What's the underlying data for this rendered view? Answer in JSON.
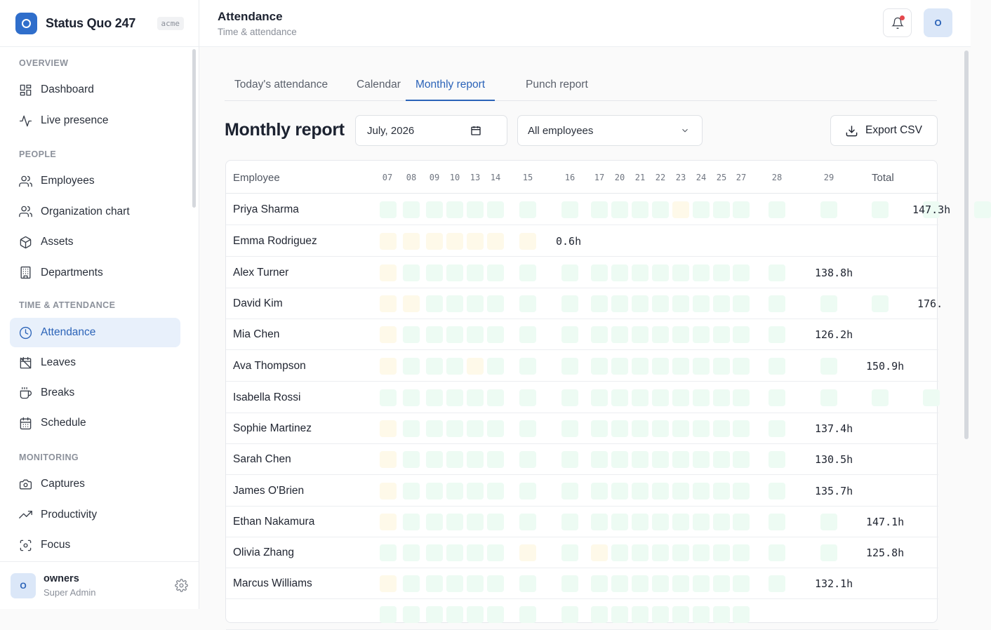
{
  "brand": {
    "name": "Status Quo 247",
    "tag": "acme"
  },
  "sidebar": {
    "sections": [
      {
        "label": "OVERVIEW",
        "items": [
          {
            "label": "Dashboard",
            "icon": "dashboard-icon"
          },
          {
            "label": "Live presence",
            "icon": "activity-icon"
          }
        ]
      },
      {
        "label": "PEOPLE",
        "items": [
          {
            "label": "Employees",
            "icon": "users-icon"
          },
          {
            "label": "Organization chart",
            "icon": "users-icon"
          },
          {
            "label": "Assets",
            "icon": "box-icon"
          },
          {
            "label": "Departments",
            "icon": "building-icon"
          }
        ]
      },
      {
        "label": "TIME & ATTENDANCE",
        "items": [
          {
            "label": "Attendance",
            "icon": "clock-icon",
            "active": true
          },
          {
            "label": "Leaves",
            "icon": "calendar-off-icon"
          },
          {
            "label": "Breaks",
            "icon": "coffee-icon"
          },
          {
            "label": "Schedule",
            "icon": "calendar-icon"
          }
        ]
      },
      {
        "label": "MONITORING",
        "items": [
          {
            "label": "Captures",
            "icon": "camera-icon"
          },
          {
            "label": "Productivity",
            "icon": "trending-up-icon"
          },
          {
            "label": "Focus",
            "icon": "focus-icon"
          }
        ]
      }
    ]
  },
  "user": {
    "initial": "O",
    "name": "owners",
    "role": "Super Admin"
  },
  "header": {
    "title": "Attendance",
    "subtitle": "Time & attendance",
    "avatar_initial": "O"
  },
  "tabs": [
    {
      "label": "Today's attendance"
    },
    {
      "label": "Calendar"
    },
    {
      "label": "Monthly report",
      "active": true
    },
    {
      "label": "Punch report"
    }
  ],
  "report": {
    "title": "Monthly report",
    "month_value": "July, 2026",
    "employee_filter": "All employees",
    "export_label": "Export CSV"
  },
  "colors": {
    "accent": "#2b63b8",
    "present": "#edfbf3",
    "late": "#fef9e9"
  },
  "table": {
    "employee_header": "Employee",
    "total_header": "Total",
    "days": [
      "07",
      "08",
      "09",
      "10",
      "13",
      "14",
      "15",
      "16",
      "17",
      "20",
      "21",
      "22",
      "23",
      "24",
      "25",
      "27",
      "28",
      "29"
    ],
    "rows": [
      {
        "name": "Priya Sharma",
        "cells": "ppppppppppppLpppppppp",
        "total": "147.3h"
      },
      {
        "name": "Emma Rodriguez",
        "cells": "LLLLLLL",
        "total": "0.6h"
      },
      {
        "name": "Alex Turner",
        "cells": "Lpppppppppppppppp",
        "total": "138.8h"
      },
      {
        "name": "David Kim",
        "cells": "LLppppppppppppppppp",
        "total": "176."
      },
      {
        "name": "Mia Chen",
        "cells": "Lpppppppppppppppp",
        "total": "126.2h"
      },
      {
        "name": "Ava Thompson",
        "cells": "LpppLppppppppppppp",
        "total": "150.9h"
      },
      {
        "name": "Isabella Rossi",
        "cells": "pppppppppppppppppppp",
        "total": ""
      },
      {
        "name": "Sophie Martinez",
        "cells": "Lpppppppppppppppp",
        "total": "137.4h"
      },
      {
        "name": "Sarah Chen",
        "cells": "Lpppppppppppppppp",
        "total": "130.5h"
      },
      {
        "name": "James O'Brien",
        "cells": "Lpppppppppppppppp",
        "total": "135.7h"
      },
      {
        "name": "Ethan Nakamura",
        "cells": "Lppppppppppppppppp",
        "total": "147.1h"
      },
      {
        "name": "Olivia Zhang",
        "cells": "ppppppLpLppppppppp",
        "total": "125.8h"
      },
      {
        "name": "Marcus Williams",
        "cells": "Lpppppppppppppppp",
        "total": "132.1h"
      },
      {
        "name": "",
        "cells": "pppppppppppppppp",
        "total": ""
      }
    ]
  }
}
